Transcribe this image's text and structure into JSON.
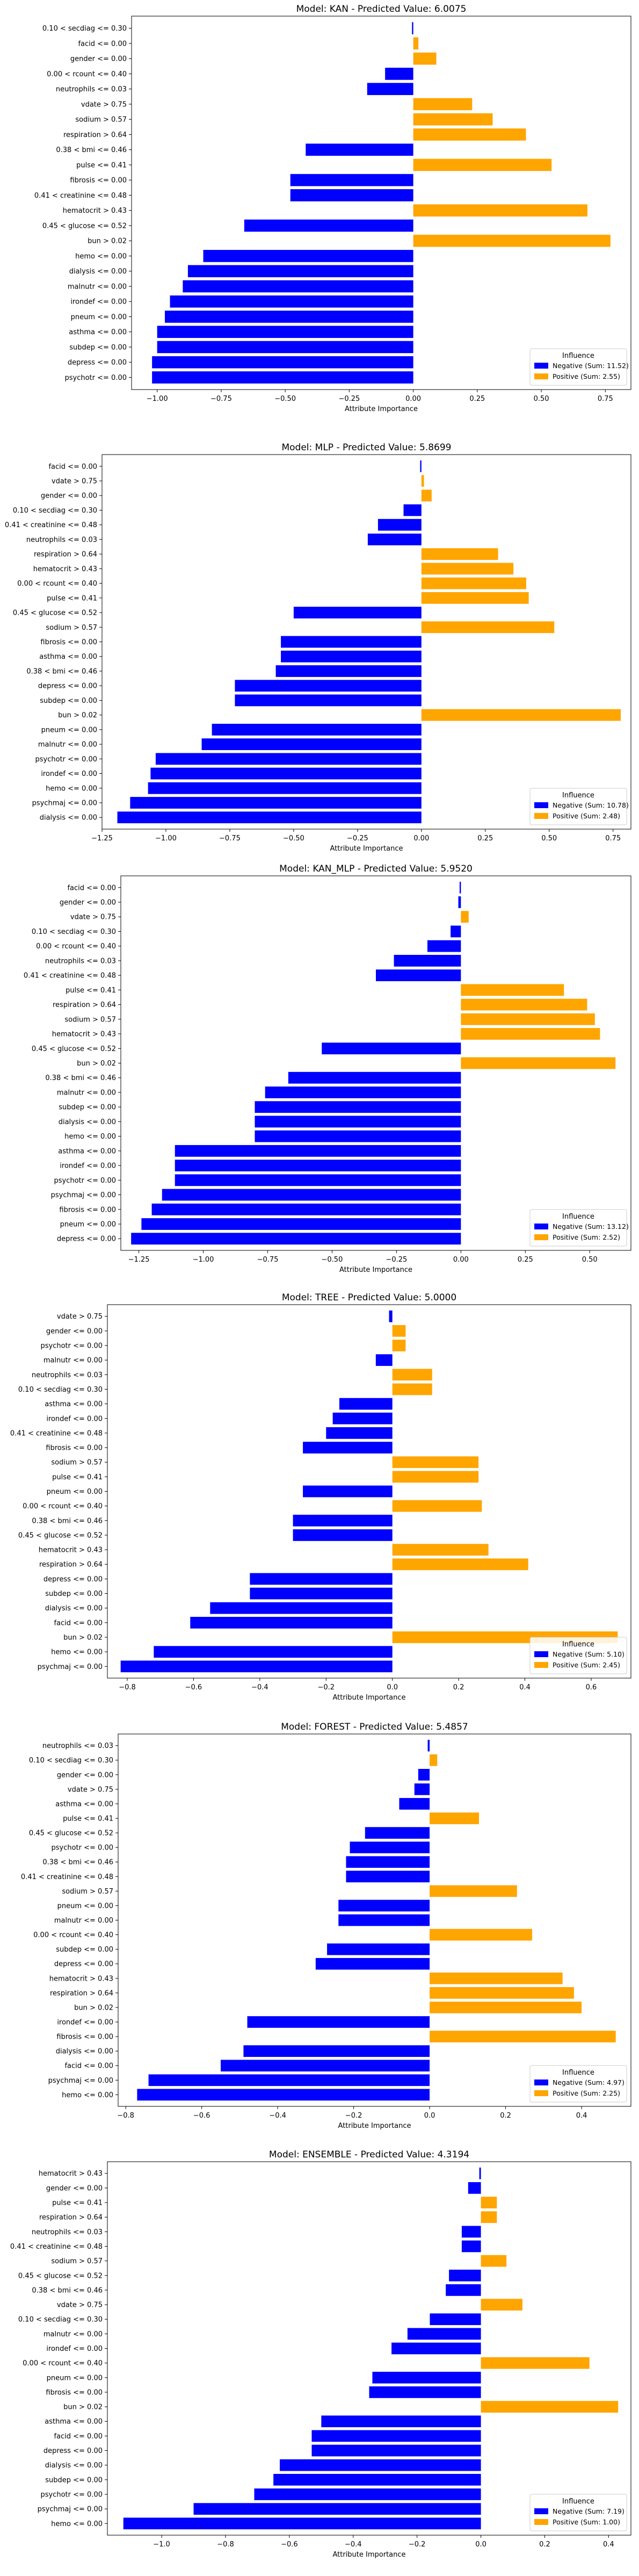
{
  "chart_data": [
    {
      "type": "bar",
      "orientation": "horizontal",
      "title": "Model: KAN - Predicted Value: 6.0075",
      "xlabel": "Attribute Importance",
      "xlim": [
        -1.1,
        0.85
      ],
      "xticks": [
        -1.0,
        -0.75,
        -0.5,
        -0.25,
        0.0,
        0.25,
        0.5,
        0.75
      ],
      "xtick_labels": [
        "−1.00",
        "−0.75",
        "−0.50",
        "−0.25",
        "0.00",
        "0.25",
        "0.50",
        "0.75"
      ],
      "categories": [
        "psychotr <= 0.00",
        "depress <= 0.00",
        "subdep <= 0.00",
        "asthma <= 0.00",
        "pneum <= 0.00",
        "irondef <= 0.00",
        "malnutr <= 0.00",
        "dialysis <= 0.00",
        "hemo <= 0.00",
        "bun > 0.02",
        "0.45 < glucose <= 0.52",
        "hematocrit > 0.43",
        "0.41 < creatinine <= 0.48",
        "fibrosis <= 0.00",
        "pulse <= 0.41",
        "0.38 < bmi <= 0.46",
        "respiration > 0.64",
        "sodium > 0.57",
        "vdate > 0.75",
        "neutrophils <= 0.03",
        "0.00 < rcount <= 0.40",
        "gender <= 0.00",
        "facid <= 0.00",
        "0.10 < secdiag <= 0.30"
      ],
      "values": [
        -1.02,
        -1.02,
        -1.0,
        -1.0,
        -0.97,
        -0.95,
        -0.9,
        -0.88,
        -0.82,
        0.77,
        -0.66,
        0.68,
        -0.48,
        -0.48,
        0.54,
        -0.42,
        0.44,
        0.31,
        0.23,
        -0.18,
        -0.11,
        0.09,
        0.02,
        -0.005
      ],
      "legend": {
        "title": "Influence",
        "placement": "lower-right",
        "entries": [
          "Negative (Sum: 11.52)",
          "Positive (Sum: 2.55)"
        ]
      },
      "colors": {
        "negative": "#0000ff",
        "positive": "#ffa500"
      }
    },
    {
      "type": "bar",
      "orientation": "horizontal",
      "title": "Model: MLP - Predicted Value: 5.8699",
      "xlabel": "Attribute Importance",
      "xlim": [
        -1.25,
        0.82
      ],
      "xticks": [
        -1.25,
        -1.0,
        -0.75,
        -0.5,
        -0.25,
        0.0,
        0.25,
        0.5,
        0.75
      ],
      "xtick_labels": [
        "−1.25",
        "−1.00",
        "−0.75",
        "−0.50",
        "−0.25",
        "0.00",
        "0.25",
        "0.50",
        "0.75"
      ],
      "categories": [
        "dialysis <= 0.00",
        "psychmaj <= 0.00",
        "hemo <= 0.00",
        "irondef <= 0.00",
        "psychotr <= 0.00",
        "malnutr <= 0.00",
        "pneum <= 0.00",
        "bun > 0.02",
        "subdep <= 0.00",
        "depress <= 0.00",
        "0.38 < bmi <= 0.46",
        "asthma <= 0.00",
        "fibrosis <= 0.00",
        "sodium > 0.57",
        "0.45 < glucose <= 0.52",
        "pulse <= 0.41",
        "0.00 < rcount <= 0.40",
        "hematocrit > 0.43",
        "respiration > 0.64",
        "neutrophils <= 0.03",
        "0.41 < creatinine <= 0.48",
        "0.10 < secdiag <= 0.30",
        "gender <= 0.00",
        "vdate > 0.75",
        "facid <= 0.00"
      ],
      "values": [
        -1.19,
        -1.14,
        -1.07,
        -1.06,
        -1.04,
        -0.86,
        -0.82,
        0.78,
        -0.73,
        -0.73,
        -0.57,
        -0.55,
        -0.55,
        0.52,
        -0.5,
        0.42,
        0.41,
        0.36,
        0.3,
        -0.21,
        -0.17,
        -0.07,
        0.04,
        0.01,
        -0.005
      ],
      "legend": {
        "title": "Influence",
        "placement": "lower-right",
        "entries": [
          "Negative (Sum: 10.78)",
          "Positive (Sum: 2.48)"
        ]
      },
      "colors": {
        "negative": "#0000ff",
        "positive": "#ffa500"
      }
    },
    {
      "type": "bar",
      "orientation": "horizontal",
      "title": "Model: KAN_MLP - Predicted Value: 5.9520",
      "xlabel": "Attribute Importance",
      "xlim": [
        -1.32,
        0.66
      ],
      "xticks": [
        -1.25,
        -1.0,
        -0.75,
        -0.5,
        -0.25,
        0.0,
        0.25,
        0.5
      ],
      "xtick_labels": [
        "−1.25",
        "−1.00",
        "−0.75",
        "−0.50",
        "−0.25",
        "0.00",
        "0.25",
        "0.50"
      ],
      "categories": [
        "depress <= 0.00",
        "pneum <= 0.00",
        "fibrosis <= 0.00",
        "psychmaj <= 0.00",
        "psychotr <= 0.00",
        "irondef <= 0.00",
        "asthma <= 0.00",
        "hemo <= 0.00",
        "dialysis <= 0.00",
        "subdep <= 0.00",
        "malnutr <= 0.00",
        "0.38 < bmi <= 0.46",
        "bun > 0.02",
        "0.45 < glucose <= 0.52",
        "hematocrit > 0.43",
        "sodium > 0.57",
        "respiration > 0.64",
        "pulse <= 0.41",
        "0.41 < creatinine <= 0.48",
        "neutrophils <= 0.03",
        "0.00 < rcount <= 0.40",
        "0.10 < secdiag <= 0.30",
        "vdate > 0.75",
        "gender <= 0.00",
        "facid <= 0.00"
      ],
      "values": [
        -1.28,
        -1.24,
        -1.2,
        -1.16,
        -1.11,
        -1.11,
        -1.11,
        -0.8,
        -0.8,
        -0.8,
        -0.76,
        -0.67,
        0.6,
        -0.54,
        0.54,
        0.52,
        0.49,
        0.4,
        -0.33,
        -0.26,
        -0.13,
        -0.04,
        0.03,
        -0.01,
        -0.005
      ],
      "legend": {
        "title": "Influence",
        "placement": "lower-right",
        "entries": [
          "Negative (Sum: 13.12)",
          "Positive (Sum: 2.52)"
        ]
      },
      "colors": {
        "negative": "#0000ff",
        "positive": "#ffa500"
      }
    },
    {
      "type": "bar",
      "orientation": "horizontal",
      "title": "Model: TREE - Predicted Value: 5.0000",
      "xlabel": "Attribute Importance",
      "xlim": [
        -0.86,
        0.72
      ],
      "xticks": [
        -0.8,
        -0.6,
        -0.4,
        -0.2,
        0.0,
        0.2,
        0.4,
        0.6
      ],
      "xtick_labels": [
        "−0.8",
        "−0.6",
        "−0.4",
        "−0.2",
        "0.0",
        "0.2",
        "0.4",
        "0.6"
      ],
      "categories": [
        "psychmaj <= 0.00",
        "hemo <= 0.00",
        "bun > 0.02",
        "facid <= 0.00",
        "dialysis <= 0.00",
        "subdep <= 0.00",
        "depress <= 0.00",
        "respiration > 0.64",
        "hematocrit > 0.43",
        "0.45 < glucose <= 0.52",
        "0.38 < bmi <= 0.46",
        "0.00 < rcount <= 0.40",
        "pneum <= 0.00",
        "pulse <= 0.41",
        "sodium > 0.57",
        "fibrosis <= 0.00",
        "0.41 < creatinine <= 0.48",
        "irondef <= 0.00",
        "asthma <= 0.00",
        "0.10 < secdiag <= 0.30",
        "neutrophils <= 0.03",
        "malnutr <= 0.00",
        "psychotr <= 0.00",
        "gender <= 0.00",
        "vdate > 0.75"
      ],
      "values": [
        -0.82,
        -0.72,
        0.68,
        -0.61,
        -0.55,
        -0.43,
        -0.43,
        0.41,
        0.29,
        -0.3,
        -0.3,
        0.27,
        -0.27,
        0.26,
        0.26,
        -0.27,
        -0.2,
        -0.18,
        -0.16,
        0.12,
        0.12,
        -0.05,
        0.04,
        0.04,
        -0.01
      ],
      "legend": {
        "title": "Influence",
        "placement": "lower-right",
        "entries": [
          "Negative (Sum: 5.10)",
          "Positive (Sum: 2.45)"
        ]
      },
      "colors": {
        "negative": "#0000ff",
        "positive": "#ffa500"
      }
    },
    {
      "type": "bar",
      "orientation": "horizontal",
      "title": "Model: FOREST - Predicted Value: 5.4857",
      "xlabel": "Attribute Importance",
      "xlim": [
        -0.82,
        0.53
      ],
      "xticks": [
        -0.8,
        -0.6,
        -0.4,
        -0.2,
        0.0,
        0.2,
        0.4
      ],
      "xtick_labels": [
        "−0.8",
        "−0.6",
        "−0.4",
        "−0.2",
        "0.0",
        "0.2",
        "0.4"
      ],
      "categories": [
        "hemo <= 0.00",
        "psychmaj <= 0.00",
        "facid <= 0.00",
        "dialysis <= 0.00",
        "fibrosis <= 0.00",
        "irondef <= 0.00",
        "bun > 0.02",
        "respiration > 0.64",
        "hematocrit > 0.43",
        "depress <= 0.00",
        "subdep <= 0.00",
        "0.00 < rcount <= 0.40",
        "malnutr <= 0.00",
        "pneum <= 0.00",
        "sodium > 0.57",
        "0.41 < creatinine <= 0.48",
        "0.38 < bmi <= 0.46",
        "psychotr <= 0.00",
        "0.45 < glucose <= 0.52",
        "pulse <= 0.41",
        "asthma <= 0.00",
        "vdate > 0.75",
        "gender <= 0.00",
        "0.10 < secdiag <= 0.30",
        "neutrophils <= 0.03"
      ],
      "values": [
        -0.77,
        -0.74,
        -0.55,
        -0.49,
        0.49,
        -0.48,
        0.4,
        0.38,
        0.35,
        -0.3,
        -0.27,
        0.27,
        -0.24,
        -0.24,
        0.23,
        -0.22,
        -0.22,
        -0.21,
        -0.17,
        0.13,
        -0.08,
        -0.04,
        -0.03,
        0.02,
        -0.005
      ],
      "legend": {
        "title": "Influence",
        "placement": "lower-right",
        "entries": [
          "Negative (Sum: 4.97)",
          "Positive (Sum: 2.25)"
        ]
      },
      "colors": {
        "negative": "#0000ff",
        "positive": "#ffa500"
      }
    },
    {
      "type": "bar",
      "orientation": "horizontal",
      "title": "Model: ENSEMBLE - Predicted Value: 4.3194",
      "xlabel": "Attribute Importance",
      "xlim": [
        -1.17,
        0.47
      ],
      "xticks": [
        -1.0,
        -0.8,
        -0.6,
        -0.4,
        -0.2,
        0.0,
        0.2,
        0.4
      ],
      "xtick_labels": [
        "−1.0",
        "−0.8",
        "−0.6",
        "−0.4",
        "−0.2",
        "0.0",
        "0.2",
        "0.4"
      ],
      "categories": [
        "hemo <= 0.00",
        "psychmaj <= 0.00",
        "psychotr <= 0.00",
        "subdep <= 0.00",
        "dialysis <= 0.00",
        "depress <= 0.00",
        "facid <= 0.00",
        "asthma <= 0.00",
        "bun > 0.02",
        "fibrosis <= 0.00",
        "pneum <= 0.00",
        "0.00 < rcount <= 0.40",
        "irondef <= 0.00",
        "malnutr <= 0.00",
        "0.10 < secdiag <= 0.30",
        "vdate > 0.75",
        "0.38 < bmi <= 0.46",
        "0.45 < glucose <= 0.52",
        "sodium > 0.57",
        "0.41 < creatinine <= 0.48",
        "neutrophils <= 0.03",
        "respiration > 0.64",
        "pulse <= 0.41",
        "gender <= 0.00",
        "hematocrit > 0.43"
      ],
      "values": [
        -1.12,
        -0.9,
        -0.71,
        -0.65,
        -0.63,
        -0.53,
        -0.53,
        -0.5,
        0.43,
        -0.35,
        -0.34,
        0.34,
        -0.28,
        -0.23,
        -0.16,
        0.13,
        -0.11,
        -0.1,
        0.08,
        -0.06,
        -0.06,
        0.05,
        0.05,
        -0.04,
        -0.005
      ],
      "legend": {
        "title": "Influence",
        "placement": "lower-right",
        "entries": [
          "Negative (Sum: 7.19)",
          "Positive (Sum: 1.00)"
        ]
      },
      "colors": {
        "negative": "#0000ff",
        "positive": "#ffa500"
      }
    }
  ]
}
